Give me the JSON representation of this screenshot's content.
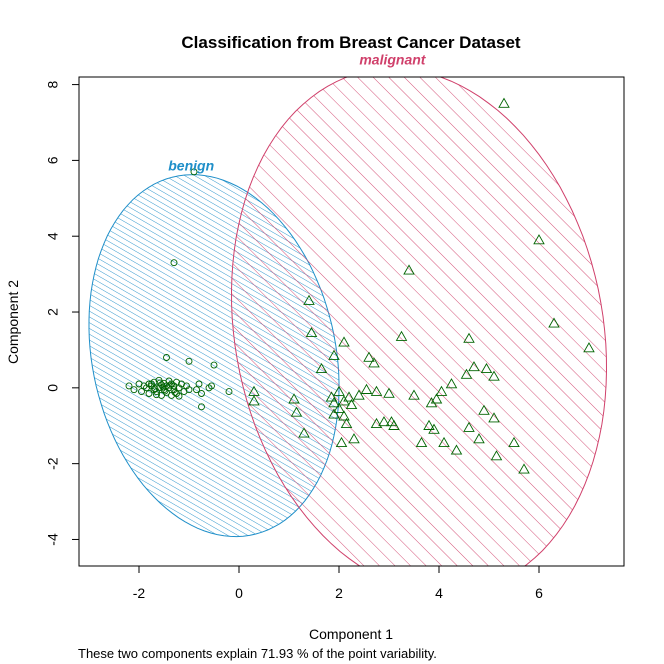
{
  "chart_data": {
    "type": "scatter",
    "title": "Classification from Breast Cancer Dataset",
    "xlabel": "Component 1",
    "ylabel": "Component 2",
    "caption": "These two components explain 71.93 % of the point variability.",
    "xlim": [
      -3.2,
      7.7
    ],
    "ylim": [
      -4.7,
      8.2
    ],
    "x_ticks": [
      "-2",
      "0",
      "2",
      "4",
      "6"
    ],
    "y_ticks": [
      "-4",
      "-2",
      "0",
      "2",
      "4",
      "6",
      "8"
    ],
    "grid": false,
    "point_color": "#006400",
    "clusters": [
      {
        "name": "benign",
        "color": "#1f8fc9",
        "marker": "circle",
        "ellipse": {
          "center": [
            -0.5,
            0.85
          ],
          "semi_axes": [
            2.45,
            4.8
          ],
          "rotation_deg": 7
        },
        "points": [
          [
            -2.2,
            0.05
          ],
          [
            -2.1,
            -0.05
          ],
          [
            -2.0,
            0.1
          ],
          [
            -1.95,
            -0.1
          ],
          [
            -1.9,
            0.05
          ],
          [
            -1.85,
            0.0
          ],
          [
            -1.8,
            -0.15
          ],
          [
            -1.8,
            0.1
          ],
          [
            -1.75,
            0.05
          ],
          [
            -1.7,
            -0.05
          ],
          [
            -1.7,
            0.15
          ],
          [
            -1.65,
            -0.1
          ],
          [
            -1.6,
            0.0
          ],
          [
            -1.6,
            0.2
          ],
          [
            -1.55,
            -0.2
          ],
          [
            -1.55,
            0.08
          ],
          [
            -1.5,
            -0.05
          ],
          [
            -1.5,
            0.12
          ],
          [
            -1.45,
            -0.12
          ],
          [
            -1.45,
            0.05
          ],
          [
            -1.4,
            0.0
          ],
          [
            -1.4,
            0.18
          ],
          [
            -1.35,
            -0.2
          ],
          [
            -1.35,
            0.1
          ],
          [
            -1.3,
            -0.05
          ],
          [
            -1.3,
            0.05
          ],
          [
            -1.25,
            -0.15
          ],
          [
            -1.25,
            0.15
          ],
          [
            -1.2,
            0.0
          ],
          [
            -1.2,
            -0.22
          ],
          [
            -1.15,
            0.1
          ],
          [
            -1.1,
            -0.1
          ],
          [
            -1.05,
            0.05
          ],
          [
            -1.0,
            -0.05
          ],
          [
            -1.75,
            0.1
          ],
          [
            -1.68,
            -0.02
          ],
          [
            -1.58,
            0.13
          ],
          [
            -1.48,
            -0.08
          ],
          [
            -1.38,
            0.07
          ],
          [
            -1.28,
            -0.12
          ],
          [
            -1.65,
            -0.18
          ],
          [
            -1.52,
            0.02
          ],
          [
            -0.85,
            -0.05
          ],
          [
            -0.8,
            0.1
          ],
          [
            -0.75,
            -0.15
          ],
          [
            -0.6,
            0.0
          ],
          [
            -0.55,
            0.05
          ],
          [
            -0.75,
            -0.5
          ],
          [
            -0.2,
            -0.1
          ],
          [
            -0.5,
            0.6
          ],
          [
            -1.0,
            0.7
          ],
          [
            -1.45,
            0.8
          ],
          [
            -1.3,
            3.3
          ],
          [
            -0.9,
            5.7
          ]
        ]
      },
      {
        "name": "malignant",
        "color": "#d0406b",
        "marker": "triangle",
        "ellipse": {
          "center": [
            3.6,
            1.5
          ],
          "semi_axes": [
            6.95,
            3.7
          ],
          "rotation_deg": 96
        },
        "points": [
          [
            5.3,
            7.5
          ],
          [
            6.0,
            3.9
          ],
          [
            3.4,
            3.1
          ],
          [
            6.3,
            1.7
          ],
          [
            7.0,
            1.05
          ],
          [
            1.4,
            2.3
          ],
          [
            1.45,
            1.45
          ],
          [
            3.25,
            1.35
          ],
          [
            4.6,
            1.3
          ],
          [
            2.1,
            1.2
          ],
          [
            2.6,
            0.8
          ],
          [
            2.7,
            0.65
          ],
          [
            1.65,
            0.5
          ],
          [
            4.7,
            0.55
          ],
          [
            4.95,
            0.5
          ],
          [
            5.1,
            0.3
          ],
          [
            4.55,
            0.35
          ],
          [
            4.25,
            0.1
          ],
          [
            0.3,
            -0.1
          ],
          [
            0.3,
            -0.35
          ],
          [
            1.1,
            -0.3
          ],
          [
            1.15,
            -0.65
          ],
          [
            1.9,
            -0.4
          ],
          [
            1.9,
            -0.7
          ],
          [
            2.0,
            -0.55
          ],
          [
            2.1,
            -0.35
          ],
          [
            2.25,
            -0.45
          ],
          [
            2.4,
            -0.2
          ],
          [
            2.55,
            -0.05
          ],
          [
            2.75,
            -0.1
          ],
          [
            3.0,
            -0.15
          ],
          [
            3.5,
            -0.2
          ],
          [
            3.85,
            -0.4
          ],
          [
            3.95,
            -0.3
          ],
          [
            4.05,
            -0.1
          ],
          [
            2.1,
            -0.75
          ],
          [
            2.15,
            -0.95
          ],
          [
            2.75,
            -0.95
          ],
          [
            2.9,
            -0.9
          ],
          [
            3.05,
            -0.9
          ],
          [
            3.1,
            -1.0
          ],
          [
            3.8,
            -1.0
          ],
          [
            3.9,
            -1.1
          ],
          [
            1.3,
            -1.2
          ],
          [
            2.3,
            -1.35
          ],
          [
            2.05,
            -1.45
          ],
          [
            3.65,
            -1.45
          ],
          [
            4.1,
            -1.45
          ],
          [
            4.35,
            -1.65
          ],
          [
            4.6,
            -1.05
          ],
          [
            4.8,
            -1.35
          ],
          [
            5.1,
            -0.8
          ],
          [
            4.9,
            -0.6
          ],
          [
            5.15,
            -1.8
          ],
          [
            5.5,
            -1.45
          ],
          [
            5.7,
            -2.15
          ],
          [
            1.9,
            0.85
          ],
          [
            2.0,
            -0.1
          ],
          [
            1.85,
            -0.25
          ],
          [
            2.2,
            -0.25
          ]
        ]
      }
    ]
  }
}
